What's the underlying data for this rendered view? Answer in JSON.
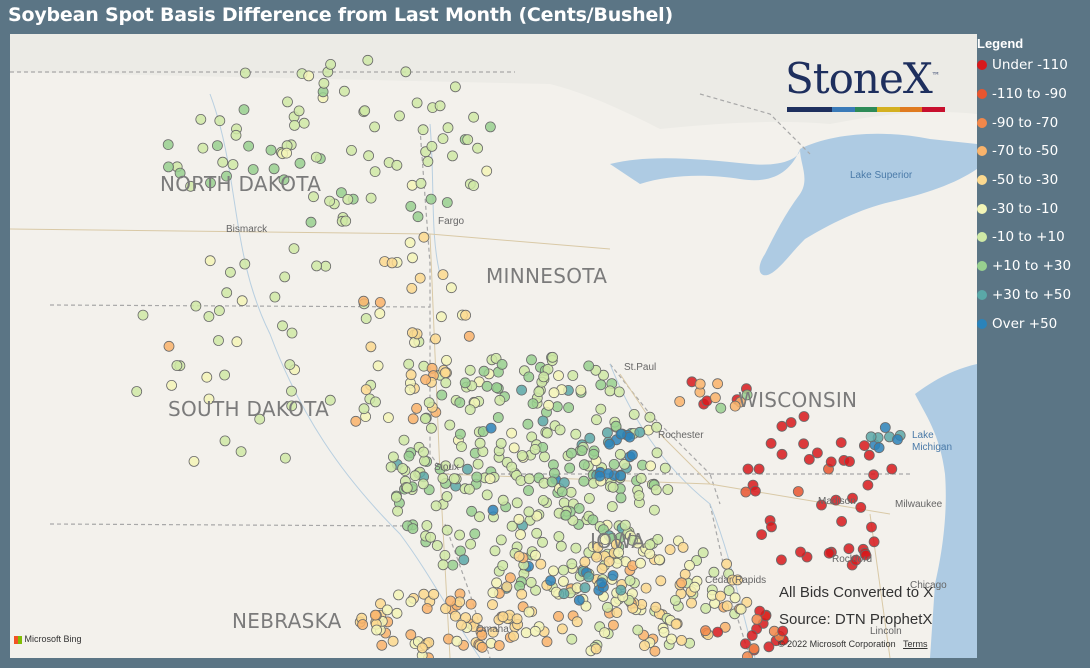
{
  "title": "Soybean Spot Basis Difference from Last Month (Cents/Bushel)",
  "legend": {
    "title": "Legend",
    "items": [
      {
        "label": "Under -110",
        "color": "#d7191c"
      },
      {
        "label": "-110 to -90",
        "color": "#e8552f"
      },
      {
        "label": "-90 to -70",
        "color": "#f2874a"
      },
      {
        "label": "-70 to -50",
        "color": "#f9b36b"
      },
      {
        "label": "-50 to -30",
        "color": "#fcd98f"
      },
      {
        "label": "-30 to -10",
        "color": "#f3f5b7"
      },
      {
        "label": "-10 to +10",
        "color": "#cfe9a6"
      },
      {
        "label": "+10 to +30",
        "color": "#98d08f"
      },
      {
        "label": "+30 to +50",
        "color": "#5aa8a8"
      },
      {
        "label": "Over +50",
        "color": "#2b83ba"
      }
    ]
  },
  "logo": {
    "text": "StoneX",
    "tm": "™"
  },
  "states": [
    "NORTH DAKOTA",
    "SOUTH DAKOTA",
    "MINNESOTA",
    "WISCONSIN",
    "NEBRASKA",
    "IOWA"
  ],
  "cities": [
    "Bismarck",
    "Fargo",
    "St.Paul",
    "Rochester",
    "Madison",
    "Milwaukee",
    "Rockford",
    "Cedar Rapids",
    "Chicago",
    "Omaha",
    "Sioux",
    "Lincoln"
  ],
  "lakes": [
    "Lake Superior",
    "Lake Michigan"
  ],
  "notes": {
    "converted": "All Bids Converted to X",
    "source": "Source: DTN ProphetX"
  },
  "copyright": "© 2022 Microsoft Corporation",
  "terms": "Terms",
  "bing": "Microsoft Bing"
}
